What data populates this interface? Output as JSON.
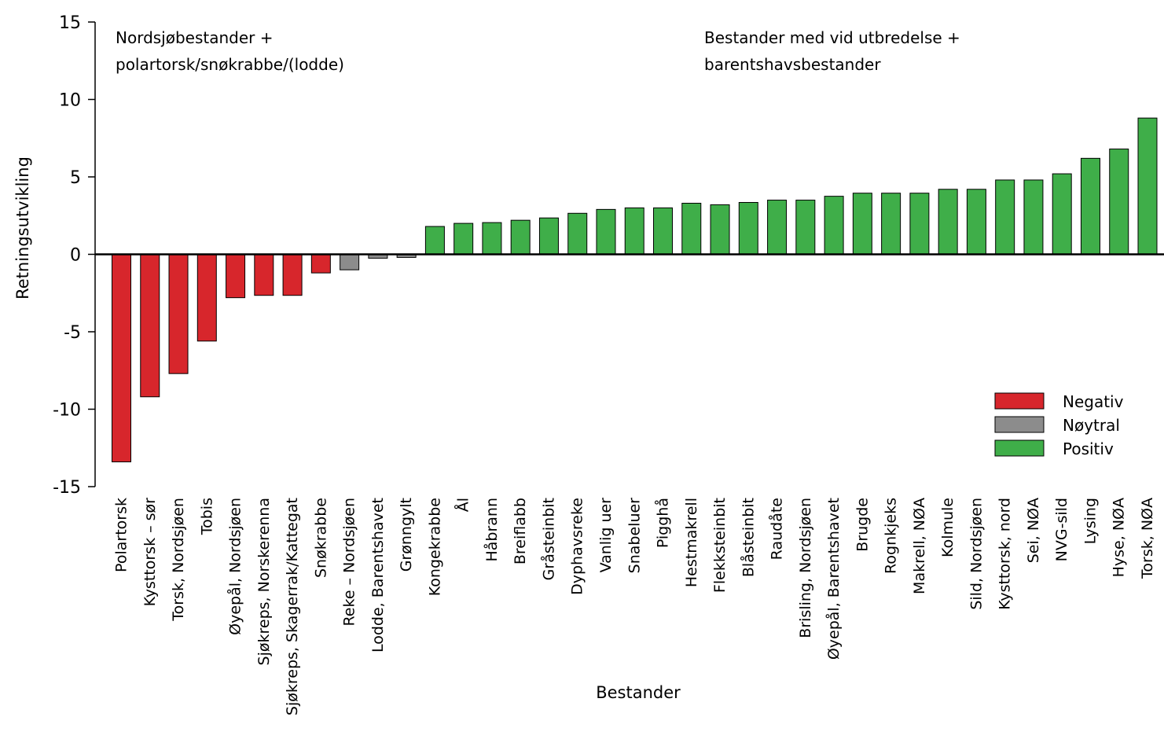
{
  "chart_data": {
    "type": "bar",
    "xlabel": "Bestander",
    "ylabel": "Retningsutvikling",
    "ylim": [
      -15,
      15
    ],
    "yticks": [
      15,
      10,
      5,
      0,
      -5,
      -10,
      -15
    ],
    "grid": false,
    "legend_position": "right",
    "annotations": [
      [
        "Nordsjøbestander +",
        "polartorsk/snøkrabbe/(lodde)"
      ],
      [
        "Bestander med vid utbredelse +",
        "barentshavsbestander"
      ]
    ],
    "legend": [
      {
        "label": "Negativ",
        "color": "#d7262c"
      },
      {
        "label": "Nøytral",
        "color": "#8c8c8c"
      },
      {
        "label": "Positiv",
        "color": "#3fae49"
      }
    ],
    "bars": [
      {
        "category": "Polartorsk",
        "value": -13.4,
        "class": "Negativ"
      },
      {
        "category": "Kysttorsk – sør",
        "value": -9.2,
        "class": "Negativ"
      },
      {
        "category": "Torsk, Nordsjøen",
        "value": -7.7,
        "class": "Negativ"
      },
      {
        "category": "Tobis",
        "value": -5.6,
        "class": "Negativ"
      },
      {
        "category": "Øyepål, Nordsjøen",
        "value": -2.8,
        "class": "Negativ"
      },
      {
        "category": "Sjøkreps, Norskerenna",
        "value": -2.65,
        "class": "Negativ"
      },
      {
        "category": "Sjøkreps, Skagerrak/Kattegat",
        "value": -2.65,
        "class": "Negativ"
      },
      {
        "category": "Snøkrabbe",
        "value": -1.2,
        "class": "Negativ"
      },
      {
        "category": "Reke – Nordsjøen",
        "value": -1.0,
        "class": "Nøytral"
      },
      {
        "category": "Lodde, Barentshavet",
        "value": -0.25,
        "class": "Nøytral"
      },
      {
        "category": "Grønngylt",
        "value": -0.2,
        "class": "Nøytral"
      },
      {
        "category": "Kongekrabbe",
        "value": 1.8,
        "class": "Positiv"
      },
      {
        "category": "Ål",
        "value": 2.0,
        "class": "Positiv"
      },
      {
        "category": "Håbrann",
        "value": 2.05,
        "class": "Positiv"
      },
      {
        "category": "Breiflabb",
        "value": 2.2,
        "class": "Positiv"
      },
      {
        "category": "Gråsteinbit",
        "value": 2.35,
        "class": "Positiv"
      },
      {
        "category": "Dyphavsreke",
        "value": 2.65,
        "class": "Positiv"
      },
      {
        "category": "Vanlig uer",
        "value": 2.9,
        "class": "Positiv"
      },
      {
        "category": "Snabeluer",
        "value": 3.0,
        "class": "Positiv"
      },
      {
        "category": "Pigghå",
        "value": 3.0,
        "class": "Positiv"
      },
      {
        "category": "Hestmakrell",
        "value": 3.3,
        "class": "Positiv"
      },
      {
        "category": "Flekksteinbit",
        "value": 3.2,
        "class": "Positiv"
      },
      {
        "category": "Blåsteinbit",
        "value": 3.35,
        "class": "Positiv"
      },
      {
        "category": "Raudåte",
        "value": 3.5,
        "class": "Positiv"
      },
      {
        "category": "Brisling, Nordsjøen",
        "value": 3.5,
        "class": "Positiv"
      },
      {
        "category": "Øyepål, Barentshavet",
        "value": 3.75,
        "class": "Positiv"
      },
      {
        "category": "Brugde",
        "value": 3.95,
        "class": "Positiv"
      },
      {
        "category": "Rognkjeks",
        "value": 3.95,
        "class": "Positiv"
      },
      {
        "category": "Makrell, NØA",
        "value": 3.95,
        "class": "Positiv"
      },
      {
        "category": "Kolmule",
        "value": 4.2,
        "class": "Positiv"
      },
      {
        "category": "Sild, Nordsjøen",
        "value": 4.2,
        "class": "Positiv"
      },
      {
        "category": "Kysttorsk, nord",
        "value": 4.8,
        "class": "Positiv"
      },
      {
        "category": "Sei, NØA",
        "value": 4.8,
        "class": "Positiv"
      },
      {
        "category": "NVG-sild",
        "value": 5.2,
        "class": "Positiv"
      },
      {
        "category": "Lysing",
        "value": 6.2,
        "class": "Positiv"
      },
      {
        "category": "Hyse, NØA",
        "value": 6.8,
        "class": "Positiv"
      },
      {
        "category": "Torsk, NØA",
        "value": 8.8,
        "class": "Positiv"
      }
    ]
  }
}
